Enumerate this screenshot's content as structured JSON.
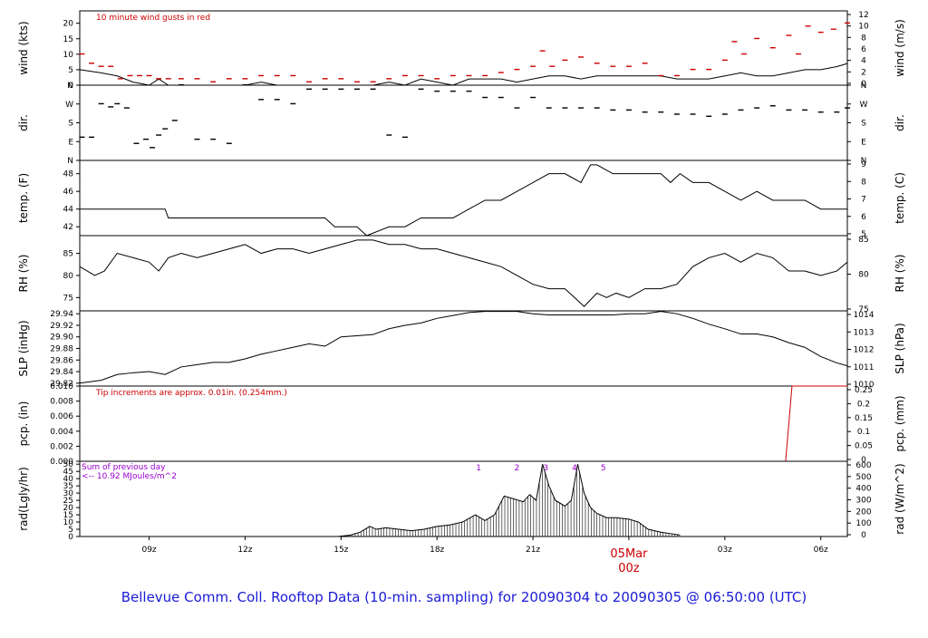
{
  "title": "Bellevue Comm. Coll. Rooftop Data (10-min. sampling) for 20090304  to  20090305 @ 06:50:00  (UTC)",
  "x_axis": {
    "ticks": [
      "09z",
      "12z",
      "15z",
      "18z",
      "21z",
      "00z",
      "03z",
      "06z"
    ],
    "tick_hours": [
      9,
      12,
      15,
      18,
      21,
      24,
      27,
      30
    ],
    "range_hours": [
      6.83,
      30.83
    ],
    "date_marker": {
      "top": "05Mar",
      "bottom": "00z",
      "hour": 24
    }
  },
  "colors": {
    "accent_red": "#cc0000",
    "annotation_purple": "#9900cc",
    "title_blue": "#1a1ad6",
    "line": "#000000"
  },
  "chart_data": [
    {
      "type": "line",
      "ylabel": "wind (kts)",
      "ylabel_right": "wind (m/s)",
      "annotation": "10  minute wind gusts in red",
      "ylim": [
        0,
        24
      ],
      "yticks": [
        0,
        5,
        10,
        15,
        20
      ],
      "yticks_right": [
        "0",
        "2",
        "4",
        "6",
        "8",
        "10",
        "12"
      ],
      "series": [
        {
          "name": "wind",
          "x": [
            6.83,
            7.5,
            8.0,
            8.5,
            9.0,
            9.3,
            9.6,
            10.0,
            11.0,
            11.5,
            12.0,
            12.5,
            13.0,
            13.5,
            14.0,
            15.0,
            15.5,
            16.0,
            16.5,
            17.0,
            17.5,
            18.0,
            18.5,
            19.0,
            19.5,
            20.0,
            20.5,
            21.0,
            21.5,
            22.0,
            22.5,
            23.0,
            23.5,
            24.0,
            25.0,
            25.5,
            26.0,
            26.5,
            27.0,
            27.5,
            28.0,
            28.5,
            29.0,
            29.5,
            30.0,
            30.5,
            30.83
          ],
          "values": [
            5,
            4,
            3,
            1,
            0,
            2,
            0,
            0,
            0,
            0,
            0,
            1,
            0,
            0,
            0,
            0,
            0,
            0,
            1,
            0,
            2,
            1,
            0,
            2,
            2,
            2,
            1,
            2,
            3,
            3,
            2,
            3,
            3,
            3,
            3,
            2,
            2,
            2,
            3,
            4,
            3,
            3,
            4,
            5,
            5,
            6,
            7
          ]
        },
        {
          "name": "gust",
          "x": [
            6.9,
            7.2,
            7.5,
            7.8,
            8.1,
            8.4,
            8.7,
            9.0,
            9.3,
            9.6,
            10.0,
            10.5,
            11.0,
            11.5,
            12.0,
            12.5,
            13.0,
            13.5,
            14.0,
            14.5,
            15.0,
            15.5,
            16.0,
            16.5,
            17.0,
            17.5,
            18.0,
            18.5,
            19.0,
            19.5,
            20.0,
            20.5,
            21.0,
            21.3,
            21.6,
            22.0,
            22.5,
            23.0,
            23.5,
            24.0,
            24.5,
            25.0,
            25.5,
            26.0,
            26.5,
            27.0,
            27.3,
            27.6,
            28.0,
            28.5,
            29.0,
            29.3,
            29.6,
            30.0,
            30.4,
            30.83
          ],
          "values": [
            10,
            7,
            6,
            6,
            2,
            3,
            3,
            3,
            2,
            2,
            2,
            2,
            1,
            2,
            2,
            3,
            3,
            3,
            1,
            2,
            2,
            1,
            1,
            2,
            3,
            3,
            2,
            3,
            3,
            3,
            4,
            5,
            6,
            11,
            6,
            8,
            9,
            7,
            6,
            6,
            7,
            3,
            3,
            5,
            5,
            8,
            14,
            10,
            15,
            12,
            16,
            10,
            19,
            17,
            18,
            20
          ]
        }
      ]
    },
    {
      "type": "scatter",
      "ylabel": "dir.",
      "ylabel_right": "dir.",
      "ylim": [
        0,
        360
      ],
      "yticks": [
        0,
        90,
        180,
        270,
        360
      ],
      "ytick_labels": [
        "N",
        "E",
        "S",
        "W",
        "N"
      ],
      "ytick_labels_right": [
        "N",
        "E",
        "S",
        "W",
        "N"
      ],
      "series": [
        {
          "name": "direction",
          "x": [
            6.9,
            7.2,
            7.5,
            7.8,
            8.0,
            8.3,
            8.6,
            8.9,
            9.1,
            9.3,
            9.5,
            9.8,
            10.0,
            10.5,
            11.0,
            11.5,
            12.0,
            12.5,
            13.0,
            13.5,
            14.0,
            14.5,
            15.0,
            15.5,
            16.0,
            16.5,
            17.0,
            17.5,
            18.0,
            18.5,
            19.0,
            19.5,
            20.0,
            20.5,
            21.0,
            21.5,
            22.0,
            22.5,
            23.0,
            23.5,
            24.0,
            24.5,
            25.0,
            25.5,
            26.0,
            26.5,
            27.0,
            27.5,
            28.0,
            28.5,
            29.0,
            29.5,
            30.0,
            30.5,
            30.83
          ],
          "values": [
            110,
            110,
            270,
            255,
            270,
            250,
            80,
            100,
            60,
            120,
            150,
            190,
            360,
            100,
            100,
            80,
            360,
            290,
            290,
            270,
            340,
            340,
            340,
            340,
            340,
            120,
            110,
            340,
            330,
            330,
            330,
            300,
            300,
            250,
            300,
            250,
            250,
            250,
            250,
            240,
            240,
            230,
            230,
            220,
            220,
            210,
            220,
            240,
            250,
            260,
            240,
            240,
            230,
            230,
            250
          ]
        }
      ]
    },
    {
      "type": "line",
      "ylabel": "temp. (F)",
      "ylabel_right": "temp. (C)",
      "ylim": [
        41,
        49.5
      ],
      "yticks": [
        42,
        44,
        46,
        48
      ],
      "yticks_right": [
        "5",
        "6",
        "7",
        "8",
        "9"
      ],
      "series": [
        {
          "name": "temperature",
          "x": [
            6.83,
            7.5,
            8.5,
            9.5,
            9.6,
            10.5,
            11.5,
            12.5,
            13.5,
            14.5,
            14.8,
            15.5,
            15.8,
            16.5,
            17.0,
            17.5,
            18.0,
            18.5,
            19.0,
            19.5,
            20.0,
            20.5,
            21.0,
            21.5,
            22.0,
            22.5,
            22.8,
            23.0,
            23.5,
            24.0,
            24.5,
            25.0,
            25.3,
            25.6,
            26.0,
            26.5,
            27.0,
            27.5,
            28.0,
            28.5,
            29.0,
            29.5,
            30.0,
            30.83
          ],
          "values": [
            44,
            44,
            44,
            44,
            43,
            43,
            43,
            43,
            43,
            43,
            42,
            42,
            41,
            42,
            42,
            43,
            43,
            43,
            44,
            45,
            45,
            46,
            47,
            48,
            48,
            47,
            49,
            49,
            48,
            48,
            48,
            48,
            47,
            48,
            47,
            47,
            46,
            45,
            46,
            45,
            45,
            45,
            44,
            44
          ]
        }
      ]
    },
    {
      "type": "line",
      "ylabel": "RH (%)",
      "ylabel_right": "RH (%)",
      "ylim": [
        72,
        89
      ],
      "yticks": [
        75,
        80,
        85
      ],
      "yticks_right": [
        "75",
        "80",
        "85"
      ],
      "series": [
        {
          "name": "relative humidity",
          "x": [
            6.83,
            7.3,
            7.6,
            8.0,
            8.5,
            9.0,
            9.3,
            9.6,
            10.0,
            10.5,
            11.0,
            11.5,
            12.0,
            12.5,
            13.0,
            13.5,
            14.0,
            14.5,
            15.0,
            15.5,
            16.0,
            16.5,
            17.0,
            17.5,
            18.0,
            18.5,
            19.0,
            19.5,
            20.0,
            20.5,
            21.0,
            21.5,
            22.0,
            22.3,
            22.6,
            23.0,
            23.3,
            23.6,
            24.0,
            24.5,
            25.0,
            25.5,
            26.0,
            26.5,
            27.0,
            27.5,
            28.0,
            28.5,
            29.0,
            29.5,
            30.0,
            30.5,
            30.83
          ],
          "values": [
            82,
            80,
            81,
            85,
            84,
            83,
            81,
            84,
            85,
            84,
            85,
            86,
            87,
            85,
            86,
            86,
            85,
            86,
            87,
            88,
            88,
            87,
            87,
            86,
            86,
            85,
            84,
            83,
            82,
            80,
            78,
            77,
            77,
            75,
            73,
            76,
            75,
            76,
            75,
            77,
            77,
            78,
            82,
            84,
            85,
            83,
            85,
            84,
            81,
            81,
            80,
            81,
            83
          ]
        }
      ]
    },
    {
      "type": "line",
      "ylabel": "SLP (inHg)",
      "ylabel_right": "SLP (hPa)",
      "ylim": [
        29.815,
        29.945
      ],
      "yticks": [
        29.82,
        29.84,
        29.86,
        29.88,
        29.9,
        29.92,
        29.94
      ],
      "ytick_labels": [
        "29.82",
        "29.84",
        "29.86",
        "29.88",
        "29.90",
        "29.92",
        "29.94"
      ],
      "yticks_right": [
        "1010",
        "1011",
        "1012",
        "1013",
        "1014"
      ],
      "series": [
        {
          "name": "sea level pressure",
          "x": [
            6.83,
            7.5,
            8.0,
            8.5,
            9.0,
            9.5,
            10.0,
            10.5,
            11.0,
            11.5,
            12.0,
            12.5,
            13.0,
            13.5,
            14.0,
            14.5,
            15.0,
            15.5,
            16.0,
            16.5,
            17.0,
            17.5,
            18.0,
            18.5,
            19.0,
            19.5,
            20.0,
            20.5,
            21.0,
            21.5,
            22.0,
            22.5,
            23.0,
            23.5,
            24.0,
            24.5,
            25.0,
            25.5,
            26.0,
            26.5,
            27.0,
            27.5,
            28.0,
            28.5,
            29.0,
            29.5,
            30.0,
            30.5,
            30.83
          ],
          "values": [
            29.82,
            29.825,
            29.835,
            29.838,
            29.84,
            29.835,
            29.848,
            29.852,
            29.856,
            29.856,
            29.862,
            29.87,
            29.876,
            29.882,
            29.888,
            29.884,
            29.9,
            29.902,
            29.904,
            29.914,
            29.92,
            29.924,
            29.932,
            29.937,
            29.942,
            29.944,
            29.944,
            29.944,
            29.94,
            29.938,
            29.938,
            29.938,
            29.938,
            29.938,
            29.94,
            29.94,
            29.944,
            29.94,
            29.932,
            29.922,
            29.914,
            29.905,
            29.905,
            29.9,
            29.89,
            29.882,
            29.866,
            29.855,
            29.85
          ]
        }
      ]
    },
    {
      "type": "line",
      "ylabel": "pcp. (in)",
      "ylabel_right": "pcp. (mm)",
      "annotation": "Tip increments are approx. 0.01in. (0.254mm.)",
      "ylim": [
        0,
        0.01
      ],
      "yticks": [
        0,
        0.002,
        0.004,
        0.006,
        0.008,
        0.01
      ],
      "ytick_labels": [
        "0.000",
        "0.002",
        "0.004",
        "0.006",
        "0.008",
        "0.010"
      ],
      "yticks_right": [
        "0",
        "0.05",
        "0.1",
        "0.15",
        "0.2",
        "0.25"
      ],
      "series": [
        {
          "name": "precipitation",
          "x": [
            6.83,
            28.9,
            29.1,
            30.83
          ],
          "values": [
            0,
            0,
            0.01,
            0.01
          ]
        }
      ]
    },
    {
      "type": "area",
      "ylabel": "rad(Lgly/hr)",
      "ylabel_right": "rad (W/m^2)",
      "annotation_lines": [
        "Sum of previous day",
        "<-- 10.92 MJoules/m^2"
      ],
      "peak_labels": [
        {
          "label": "1",
          "x": 19.3
        },
        {
          "label": "2",
          "x": 20.5
        },
        {
          "label": "3",
          "x": 21.4
        },
        {
          "label": "4",
          "x": 22.3
        },
        {
          "label": "5",
          "x": 23.2
        }
      ],
      "ylim": [
        0,
        52
      ],
      "yticks": [
        0,
        5,
        10,
        15,
        20,
        25,
        30,
        35,
        40,
        45,
        50
      ],
      "yticks_right": [
        "0",
        "100",
        "200",
        "300",
        "400",
        "500",
        "600"
      ],
      "series": [
        {
          "name": "radiation",
          "x": [
            14.9,
            15.3,
            15.6,
            15.9,
            16.1,
            16.4,
            16.8,
            17.2,
            17.6,
            18.0,
            18.4,
            18.8,
            19.2,
            19.5,
            19.8,
            20.1,
            20.4,
            20.7,
            20.9,
            21.1,
            21.3,
            21.5,
            21.7,
            22.0,
            22.2,
            22.4,
            22.6,
            22.8,
            23.0,
            23.3,
            23.6,
            24.0,
            24.3,
            24.6,
            25.0,
            25.3,
            25.6
          ],
          "values": [
            0,
            1,
            3,
            7,
            5,
            6,
            5,
            4,
            5,
            7,
            8,
            10,
            15,
            11,
            15,
            28,
            26,
            24,
            29,
            25,
            50,
            35,
            25,
            21,
            25,
            50,
            30,
            20,
            16,
            13,
            13,
            12,
            10,
            5,
            3,
            2,
            1
          ]
        }
      ]
    }
  ]
}
